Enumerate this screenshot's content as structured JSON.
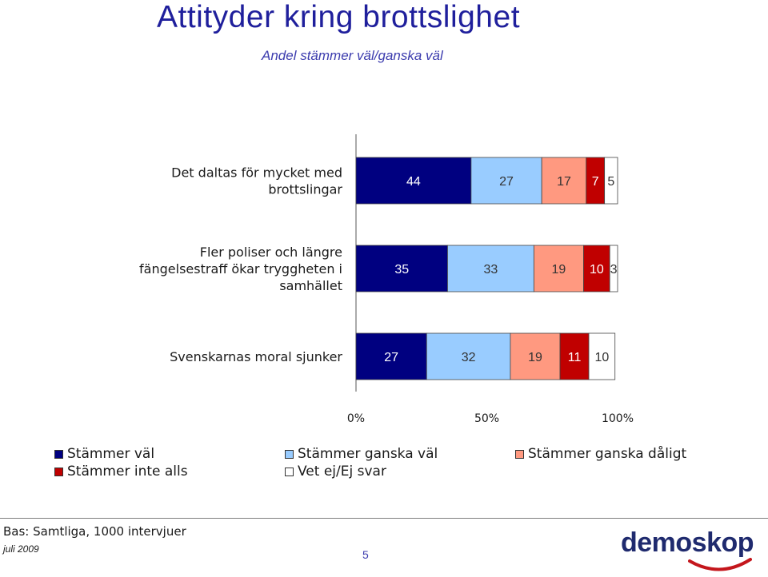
{
  "title": "Attityder kring brottslighet",
  "subtitle": "Andel stämmer väl/ganska väl",
  "chart_data": {
    "type": "bar",
    "orientation": "horizontal",
    "stacked": true,
    "categories": [
      [
        "Det daltas för mycket med",
        "brottslingar"
      ],
      [
        "Fler poliser och längre",
        "fängelsestraff ökar tryggheten i",
        "samhället"
      ],
      [
        "Svenskarnas moral sjunker"
      ]
    ],
    "series": [
      {
        "name": "Stämmer väl",
        "color": "#000080",
        "label_color": "#ffffff",
        "values": [
          44,
          35,
          27
        ]
      },
      {
        "name": "Stämmer ganska väl",
        "color": "#99ccff",
        "label_color": "#333333",
        "values": [
          27,
          33,
          32
        ]
      },
      {
        "name": "Stämmer ganska dåligt",
        "color": "#ff9980",
        "label_color": "#333333",
        "values": [
          17,
          19,
          19
        ]
      },
      {
        "name": "Stämmer inte alls",
        "color": "#c00000",
        "label_color": "#ffffff",
        "values": [
          7,
          10,
          11
        ]
      },
      {
        "name": "Vet ej/Ej svar",
        "color": "#ffffff",
        "label_color": "#333333",
        "values": [
          5,
          3,
          10
        ]
      }
    ],
    "xlim": [
      0,
      100
    ],
    "xticks": [
      "0%",
      "50%",
      "100%"
    ],
    "legend_position": "bottom",
    "grid": false
  },
  "footer": {
    "base": "Bas: Samtliga, 1000 intervjuer",
    "date": "juli 2009",
    "page": "5",
    "logo": "demoskop"
  }
}
